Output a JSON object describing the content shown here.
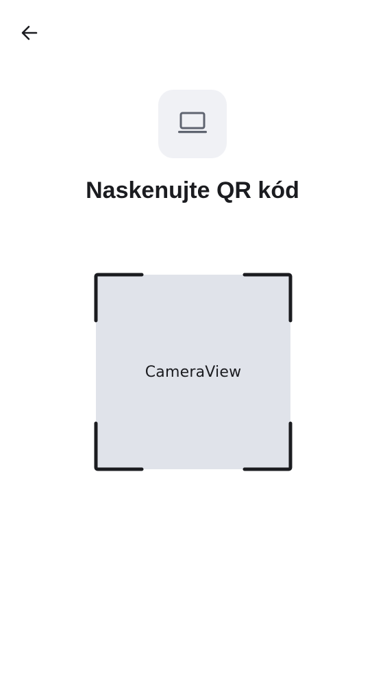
{
  "header": {
    "back_icon": "arrow-left-icon"
  },
  "device": {
    "icon": "laptop-icon",
    "tile_color": "#f0f1f5"
  },
  "title": "Naskenujte QR kód",
  "scanner": {
    "camera_label": "CameraView",
    "camera_bg": "#e0e3ea",
    "frame_color": "#1b1c20"
  }
}
